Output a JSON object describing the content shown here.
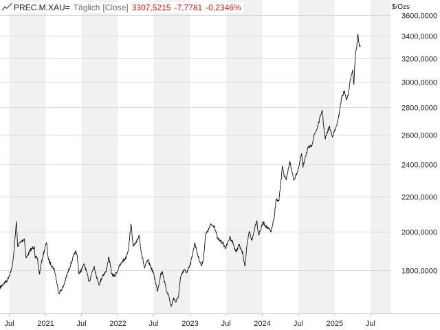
{
  "header": {
    "symbol": "PREC.M.XAU=",
    "interval": "Täglich",
    "mode": "[Close]",
    "last": "3307,5215",
    "change": "-7,7781",
    "change_pct": "-0,2346%",
    "icon": "line-chart-icon"
  },
  "colors": {
    "line": "#111111",
    "negative": "#d42020",
    "band": "#f1f1f1",
    "grid": "#dadada",
    "axis_area": "#ffffff"
  },
  "chart_data": {
    "type": "line",
    "title": "",
    "ylabel": "$/Ozs",
    "yscale": "log",
    "ylim": [
      1600,
      3750
    ],
    "xlim": [
      "2020-05-15",
      "2025-10-10"
    ],
    "grid": true,
    "ytick_labels": [
      "1800,0000",
      "2000,0000",
      "2200,0000",
      "2400,0000",
      "2600,0000",
      "2800,0000",
      "3000,0000",
      "3200,0000",
      "3400,0000",
      "3600,0000"
    ],
    "yticks": [
      1800,
      2000,
      2200,
      2400,
      2600,
      2800,
      3000,
      3200,
      3400,
      3600
    ],
    "xtick_labels": [
      "Jul",
      "2021",
      "Jul",
      "2022",
      "Jul",
      "2023",
      "Jul",
      "2024",
      "Jul",
      "2025",
      "Jul"
    ],
    "xticks": [
      "2020-07-01",
      "2021-01-01",
      "2021-07-01",
      "2022-01-01",
      "2022-07-01",
      "2023-01-01",
      "2023-07-01",
      "2024-01-01",
      "2024-07-01",
      "2025-01-01",
      "2025-07-01"
    ],
    "series": [
      {
        "x": [
          "2020-05-15",
          "2020-06-01",
          "2020-06-20",
          "2020-07-15",
          "2020-07-25",
          "2020-08-06",
          "2020-08-12",
          "2020-08-25",
          "2020-09-15",
          "2020-09-24",
          "2020-10-15",
          "2020-11-05",
          "2020-11-09",
          "2020-11-20",
          "2020-11-30",
          "2020-12-15",
          "2021-01-05",
          "2021-01-15",
          "2021-02-15",
          "2021-03-08",
          "2021-03-31",
          "2021-04-20",
          "2021-05-15",
          "2021-06-01",
          "2021-06-10",
          "2021-06-18",
          "2021-07-05",
          "2021-07-15",
          "2021-08-09",
          "2021-08-20",
          "2021-09-03",
          "2021-09-15",
          "2021-09-29",
          "2021-10-15",
          "2021-11-01",
          "2021-11-16",
          "2021-12-01",
          "2021-12-15",
          "2022-01-10",
          "2022-01-25",
          "2022-02-10",
          "2022-02-24",
          "2022-03-08",
          "2022-03-20",
          "2022-04-05",
          "2022-04-18",
          "2022-05-01",
          "2022-05-16",
          "2022-06-01",
          "2022-06-15",
          "2022-07-01",
          "2022-07-20",
          "2022-08-05",
          "2022-08-15",
          "2022-09-01",
          "2022-09-15",
          "2022-09-27",
          "2022-10-10",
          "2022-10-21",
          "2022-11-04",
          "2022-11-15",
          "2022-12-01",
          "2022-12-15",
          "2023-01-05",
          "2023-01-25",
          "2023-02-10",
          "2023-02-28",
          "2023-03-10",
          "2023-03-20",
          "2023-04-05",
          "2023-04-13",
          "2023-05-04",
          "2023-05-20",
          "2023-06-01",
          "2023-06-15",
          "2023-06-29",
          "2023-07-15",
          "2023-07-20",
          "2023-08-05",
          "2023-08-21",
          "2023-09-05",
          "2023-09-25",
          "2023-10-05",
          "2023-10-15",
          "2023-10-27",
          "2023-11-10",
          "2023-11-28",
          "2023-12-04",
          "2023-12-13",
          "2024-01-05",
          "2024-01-25",
          "2024-02-14",
          "2024-03-01",
          "2024-03-10",
          "2024-03-25",
          "2024-04-05",
          "2024-04-12",
          "2024-04-22",
          "2024-05-01",
          "2024-05-10",
          "2024-05-20",
          "2024-06-07",
          "2024-06-20",
          "2024-07-05",
          "2024-07-17",
          "2024-07-25",
          "2024-08-05",
          "2024-08-20",
          "2024-09-05",
          "2024-09-20",
          "2024-10-05",
          "2024-10-22",
          "2024-10-30",
          "2024-11-07",
          "2024-11-14",
          "2024-11-25",
          "2024-12-05",
          "2024-12-19",
          "2025-01-05",
          "2025-01-20",
          "2025-02-05",
          "2025-02-20",
          "2025-02-28",
          "2025-03-10",
          "2025-03-20",
          "2025-04-01",
          "2025-04-08",
          "2025-04-15",
          "2025-04-22",
          "2025-04-28",
          "2025-05-05",
          "2025-05-10"
        ],
        "y": [
          1715,
          1735,
          1750,
          1810,
          1900,
          2055,
          1920,
          1940,
          1960,
          1860,
          1900,
          1920,
          1860,
          1860,
          1780,
          1860,
          1940,
          1850,
          1800,
          1690,
          1720,
          1780,
          1850,
          1895,
          1870,
          1780,
          1810,
          1830,
          1745,
          1780,
          1820,
          1770,
          1730,
          1775,
          1790,
          1865,
          1780,
          1770,
          1820,
          1845,
          1860,
          1910,
          2040,
          1920,
          1940,
          1980,
          1880,
          1810,
          1850,
          1820,
          1780,
          1700,
          1780,
          1790,
          1710,
          1680,
          1630,
          1670,
          1650,
          1680,
          1770,
          1800,
          1790,
          1840,
          1940,
          1870,
          1820,
          1860,
          1980,
          2010,
          2035,
          2030,
          1960,
          1950,
          1940,
          1910,
          1950,
          1970,
          1940,
          1890,
          1930,
          1880,
          1820,
          1920,
          2000,
          1950,
          2040,
          2060,
          1980,
          2050,
          2020,
          2000,
          2070,
          2180,
          2170,
          2300,
          2390,
          2320,
          2300,
          2360,
          2420,
          2300,
          2330,
          2390,
          2470,
          2380,
          2450,
          2510,
          2520,
          2600,
          2650,
          2740,
          2780,
          2650,
          2570,
          2620,
          2660,
          2590,
          2640,
          2720,
          2880,
          2930,
          2860,
          2890,
          3020,
          3100,
          2980,
          3240,
          3290,
          3420,
          3320,
          3300
        ]
      }
    ]
  }
}
